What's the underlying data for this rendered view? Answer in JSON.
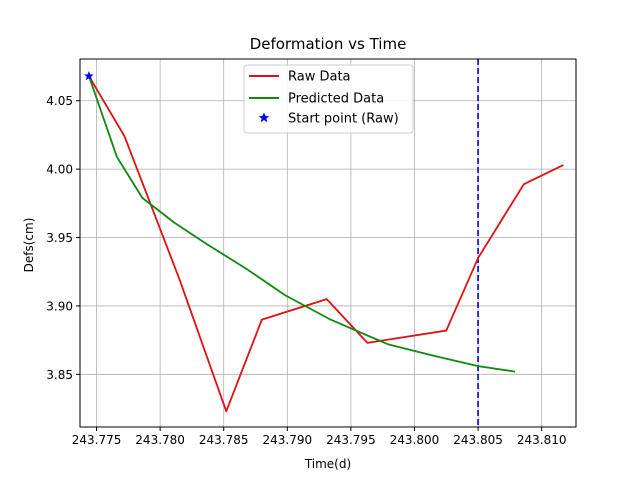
{
  "chart_data": {
    "type": "line",
    "title": "Deformation vs Time",
    "xlabel": "Time(d)",
    "ylabel": "Defs(cm)",
    "xlim": [
      243.7737,
      243.8127
    ],
    "ylim": [
      3.8115,
      4.0805
    ],
    "xticks": [
      243.775,
      243.78,
      243.785,
      243.79,
      243.795,
      243.8,
      243.805,
      243.81
    ],
    "xtick_labels": [
      "243.775",
      "243.780",
      "243.785",
      "243.790",
      "243.795",
      "243.800",
      "243.805",
      "243.810"
    ],
    "yticks": [
      3.85,
      3.9,
      3.95,
      4.0,
      4.05
    ],
    "ytick_labels": [
      "3.85",
      "3.90",
      "3.95",
      "4.00",
      "4.05"
    ],
    "grid": true,
    "legend_position": "upper center",
    "vertical_marker": {
      "x": 243.805,
      "color": "#0000cc",
      "style": "dashed"
    },
    "series": [
      {
        "name": "Raw Data",
        "color": "#dd1111",
        "x": [
          243.7744,
          243.7772,
          243.7815,
          243.7852,
          243.788,
          243.7931,
          243.7963,
          243.8025,
          243.805,
          243.8086,
          243.8117
        ],
        "y": [
          4.068,
          4.024,
          3.92,
          3.823,
          3.89,
          3.905,
          3.873,
          3.882,
          3.935,
          3.989,
          4.003
        ]
      },
      {
        "name": "Predicted Data",
        "color": "#118811",
        "x": [
          243.7744,
          243.7766,
          243.7786,
          243.7811,
          243.7837,
          243.7868,
          243.7898,
          243.7934,
          243.7979,
          243.8013,
          243.805,
          243.8079
        ],
        "y": [
          4.068,
          4.009,
          3.979,
          3.961,
          3.945,
          3.927,
          3.908,
          3.89,
          3.872,
          3.864,
          3.856,
          3.852
        ]
      },
      {
        "name": "Start point (Raw)",
        "color": "#0000ee",
        "marker": "star",
        "x": [
          243.7744
        ],
        "y": [
          4.068
        ]
      }
    ]
  }
}
